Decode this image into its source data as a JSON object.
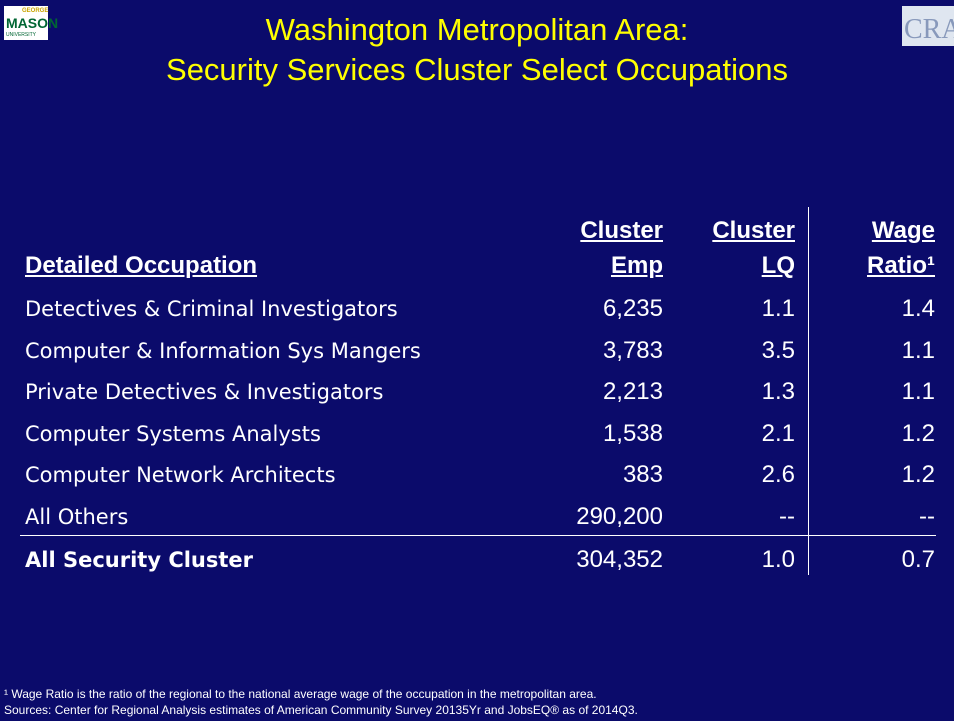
{
  "header": {
    "title": [
      "Washington Metropolitan Area:",
      "Security Services Cluster Select Occupations"
    ],
    "logo_left": [
      "GEORGE",
      "MASON",
      "UNIVERSITY"
    ],
    "logo_right": "CRA"
  },
  "table": {
    "headers": [
      [
        "Detailed Occupation"
      ],
      [
        "Cluster",
        "Emp"
      ],
      [
        "Cluster",
        "LQ"
      ],
      [
        "Wage",
        "Ratio¹"
      ]
    ],
    "rows": [
      [
        "Detectives & Criminal Investigators",
        "6,235",
        "1.1",
        "1.4"
      ],
      [
        "Computer & Information Sys Mangers",
        "3,783",
        "3.5",
        "1.1"
      ],
      [
        "Private Detectives & Investigators",
        "2,213",
        "1.3",
        "1.1"
      ],
      [
        "Computer Systems Analysts",
        "1,538",
        "2.1",
        "1.2"
      ],
      [
        "Computer Network Architects",
        "383",
        "2.6",
        "1.2"
      ],
      [
        "All Others",
        "290,200",
        "--",
        "--"
      ],
      [
        "All Security Cluster",
        "304,352",
        "1.0",
        "0.7"
      ]
    ]
  },
  "footnotes": [
    "¹ Wage Ratio is the ratio of the regional to the national average wage of the occupation in the metropolitan area.",
    "Sources: Center for Regional Analysis estimates of American Community Survey 20135Yr and JobsEQ® as of 2014Q3."
  ]
}
